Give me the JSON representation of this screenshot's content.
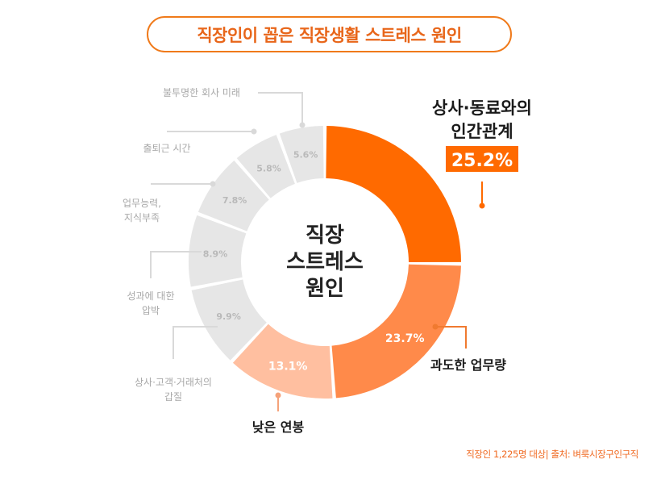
{
  "title": "직장인이 꼽은 직장생활 스트레스 원인",
  "center_label": [
    "직장",
    "스트레스",
    "원인"
  ],
  "footer": "직장인 1,225명 대상| 출처: 벼룩시장구인구직",
  "colors": {
    "accent": "#ff6a00",
    "mid": "#ff8a4a",
    "light": "#ffbfa0",
    "gray": "#e6e6e6",
    "gray_text": "#aaaaaa",
    "label_dark": "#1a1a1a"
  },
  "chart_data": {
    "type": "pie",
    "subtype": "donut",
    "title": "직장인이 꼽은 직장생활 스트레스 원인",
    "unit": "%",
    "slices": [
      {
        "label": "상사·동료와의 인간관계",
        "value": 25.2,
        "value_label": "25.2%",
        "color": "#ff6a00",
        "highlight": true
      },
      {
        "label": "과도한 업무량",
        "value": 23.7,
        "value_label": "23.7%",
        "color": "#ff8a4a"
      },
      {
        "label": "낮은 연봉",
        "value": 13.1,
        "value_label": "13.1%",
        "color": "#ffbfa0"
      },
      {
        "label": "상사·고객·거래처의 갑질",
        "value": 9.9,
        "value_label": "9.9%",
        "color": "#e6e6e6"
      },
      {
        "label": "성과에 대한 압박",
        "value": 8.9,
        "value_label": "8.9%",
        "color": "#e6e6e6"
      },
      {
        "label": "업무능력, 지식부족",
        "value": 7.8,
        "value_label": "7.8%",
        "color": "#e6e6e6"
      },
      {
        "label": "출퇴근 시간",
        "value": 5.8,
        "value_label": "5.8%",
        "color": "#e6e6e6"
      },
      {
        "label": "불투명한 회사 미래",
        "value": 5.6,
        "value_label": "5.6%",
        "color": "#e6e6e6"
      }
    ]
  }
}
